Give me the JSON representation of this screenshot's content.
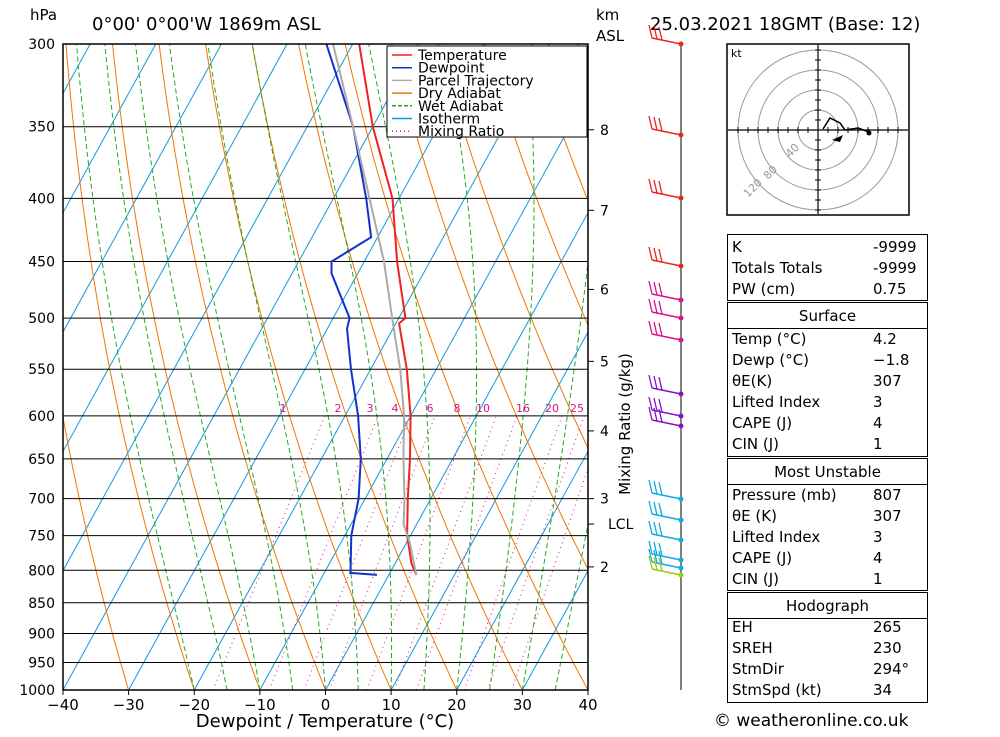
{
  "header": {
    "hpa_label": "hPa",
    "location": "0°00' 0°00'W 1869m ASL",
    "km_label": "km",
    "asl_label": "ASL",
    "datetime": "25.03.2021 18GMT (Base: 12)"
  },
  "chart_data": {
    "type": "line",
    "title": "0°00' 0°00'W 1869m ASL",
    "xlabel": "Dewpoint / Temperature (°C)",
    "ylabel": "hPa",
    "xlim": [
      -40,
      40
    ],
    "ylim": [
      1000,
      300
    ],
    "x_ticks": [
      "−40",
      "−30",
      "−20",
      "−10",
      "0",
      "10",
      "20",
      "30",
      "40"
    ],
    "pressure_ticks": [
      300,
      350,
      400,
      450,
      500,
      550,
      600,
      650,
      700,
      750,
      800,
      850,
      900,
      950,
      1000
    ],
    "pressure_tick_labels": [
      "300",
      "350",
      "400",
      "450",
      "500",
      "550",
      "600",
      "650",
      "700",
      "750",
      "800",
      "850",
      "900",
      "950",
      "1000"
    ],
    "km_ticks": [
      {
        "label": "8",
        "p": 352
      },
      {
        "label": "7",
        "p": 409
      },
      {
        "label": "6",
        "p": 474
      },
      {
        "label": "5",
        "p": 542
      },
      {
        "label": "4",
        "p": 617
      },
      {
        "label": "3",
        "p": 700
      },
      {
        "label": "LCL",
        "p": 734
      },
      {
        "label": "2",
        "p": 795
      }
    ],
    "mixing_ratio_title": "Mixing Ratio (g/kg)",
    "mixing_ratio_labels": [
      "1",
      "2",
      "3",
      "4",
      "6",
      "8",
      "10",
      "16",
      "20",
      "25"
    ],
    "mixing_ratio_values": [
      1,
      2,
      3,
      4,
      6,
      8,
      10,
      16,
      20,
      25
    ],
    "legend": [
      {
        "name": "Temperature",
        "color": "#ee2222",
        "style": "solid"
      },
      {
        "name": "Dewpoint",
        "color": "#1133cc",
        "style": "solid"
      },
      {
        "name": "Parcel Trajectory",
        "color": "#aaaaaa",
        "style": "solid"
      },
      {
        "name": "Dry Adiabat",
        "color": "#ee7700",
        "style": "solid"
      },
      {
        "name": "Wet Adiabat",
        "color": "#22aa22",
        "style": "dashed"
      },
      {
        "name": "Isotherm",
        "color": "#1199dd",
        "style": "solid"
      },
      {
        "name": "Mixing Ratio",
        "color": "#dd1188",
        "style": "dotted"
      }
    ],
    "series": [
      {
        "name": "Temperature",
        "color": "#ee2222",
        "points": [
          [
            807,
            4.2
          ],
          [
            790,
            2.5
          ],
          [
            750,
            -0.5
          ],
          [
            700,
            -3.5
          ],
          [
            650,
            -6.5
          ],
          [
            600,
            -10
          ],
          [
            550,
            -14.5
          ],
          [
            505,
            -19.5
          ],
          [
            500,
            -19
          ],
          [
            450,
            -25
          ],
          [
            400,
            -31
          ],
          [
            350,
            -40
          ],
          [
            300,
            -49
          ]
        ]
      },
      {
        "name": "Dewpoint",
        "color": "#1133cc",
        "points": [
          [
            807,
            -1.8
          ],
          [
            804,
            -6
          ],
          [
            750,
            -9
          ],
          [
            700,
            -11
          ],
          [
            650,
            -14
          ],
          [
            600,
            -18
          ],
          [
            550,
            -23
          ],
          [
            510,
            -27
          ],
          [
            500,
            -27.5
          ],
          [
            460,
            -34
          ],
          [
            450,
            -35
          ],
          [
            430,
            -31
          ],
          [
            400,
            -35
          ],
          [
            350,
            -43
          ],
          [
            300,
            -54
          ]
        ]
      },
      {
        "name": "Parcel Trajectory",
        "color": "#aaaaaa",
        "points": [
          [
            807,
            4.2
          ],
          [
            760,
            0.5
          ],
          [
            734,
            -2
          ],
          [
            700,
            -4
          ],
          [
            650,
            -7.5
          ],
          [
            600,
            -11
          ],
          [
            550,
            -15.5
          ],
          [
            500,
            -21
          ],
          [
            450,
            -27
          ],
          [
            400,
            -34.5
          ],
          [
            350,
            -43
          ],
          [
            300,
            -53
          ]
        ]
      }
    ]
  },
  "hodograph": {
    "unit_label": "kt",
    "ring_labels": [
      "40",
      "80",
      "120"
    ]
  },
  "wind_barb_colors": [
    "#ee2222",
    "#dd1188",
    "#8811cc",
    "#11aadd",
    "#99cc11"
  ],
  "indices": {
    "k_label": "K",
    "k_value": "-9999",
    "tt_label": "Totals Totals",
    "tt_value": "-9999",
    "pw_label": "PW (cm)",
    "pw_value": "0.75"
  },
  "surface": {
    "title": "Surface",
    "temp_label": "Temp (°C)",
    "temp_value": "4.2",
    "dewp_label": "Dewp (°C)",
    "dewp_value": "−1.8",
    "theta_label": "θE(K)",
    "theta_value": "307",
    "li_label": "Lifted Index",
    "li_value": "3",
    "cape_label": "CAPE (J)",
    "cape_value": "4",
    "cin_label": "CIN (J)",
    "cin_value": "1"
  },
  "most_unstable": {
    "title": "Most Unstable",
    "pressure_label": "Pressure (mb)",
    "pressure_value": "807",
    "theta_label": "θE (K)",
    "theta_value": "307",
    "li_label": "Lifted Index",
    "li_value": "3",
    "cape_label": "CAPE (J)",
    "cape_value": "4",
    "cin_label": "CIN (J)",
    "cin_value": "1"
  },
  "hodograph_params": {
    "title": "Hodograph",
    "eh_label": "EH",
    "eh_value": "265",
    "sreh_label": "SREH",
    "sreh_value": "230",
    "stmdir_label": "StmDir",
    "stmdir_value": "294°",
    "stmspd_label": "StmSpd (kt)",
    "stmspd_value": "34"
  },
  "footer": {
    "credit": "© weatheronline.co.uk"
  }
}
